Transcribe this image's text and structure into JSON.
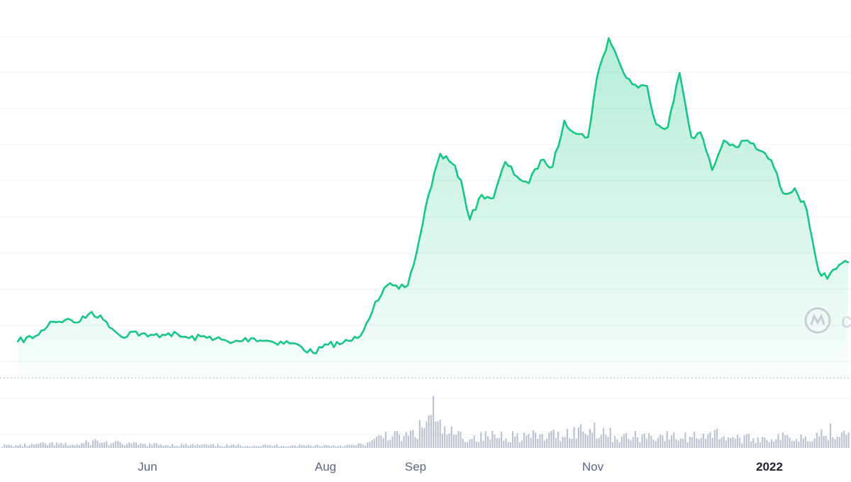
{
  "chart_data": {
    "type": "area",
    "title": "",
    "xlabel": "",
    "ylabel": "",
    "x_tick_labels": [
      {
        "label": "Jun",
        "emphasis": false
      },
      {
        "label": "Aug",
        "emphasis": false
      },
      {
        "label": "Sep",
        "emphasis": false
      },
      {
        "label": "Nov",
        "emphasis": false
      },
      {
        "label": "2022",
        "emphasis": true
      }
    ],
    "price_series": {
      "name": "",
      "color": "#16c784",
      "fill_top_color": "#16c784",
      "note_units": "relative price index (axis values not printed)",
      "x": [
        "2021-04-20",
        "2021-04-27",
        "2021-05-01",
        "2021-05-06",
        "2021-05-11",
        "2021-05-15",
        "2021-05-20",
        "2021-05-25",
        "2021-05-29",
        "2021-06-03",
        "2021-06-10",
        "2021-06-17",
        "2021-06-24",
        "2021-07-01",
        "2021-07-08",
        "2021-07-15",
        "2021-07-22",
        "2021-07-29",
        "2021-08-03",
        "2021-08-08",
        "2021-08-13",
        "2021-08-16",
        "2021-08-19",
        "2021-08-23",
        "2021-08-27",
        "2021-08-30",
        "2021-09-02",
        "2021-09-06",
        "2021-09-10",
        "2021-09-14",
        "2021-09-17",
        "2021-09-20",
        "2021-09-24",
        "2021-09-28",
        "2021-10-02",
        "2021-10-06",
        "2021-10-10",
        "2021-10-14",
        "2021-10-18",
        "2021-10-22",
        "2021-10-26",
        "2021-10-30",
        "2021-11-02",
        "2021-11-06",
        "2021-11-09",
        "2021-11-12",
        "2021-11-16",
        "2021-11-19",
        "2021-11-22",
        "2021-11-26",
        "2021-11-30",
        "2021-12-04",
        "2021-12-07",
        "2021-12-11",
        "2021-12-15",
        "2021-12-19",
        "2021-12-23",
        "2021-12-27",
        "2021-12-31",
        "2022-01-04",
        "2022-01-08",
        "2022-01-12",
        "2022-01-16",
        "2022-01-19",
        "2022-01-22",
        "2022-01-26"
      ],
      "values": [
        0.4,
        0.6,
        1.0,
        1.05,
        1.0,
        1.3,
        1.0,
        0.55,
        0.7,
        0.55,
        0.65,
        0.5,
        0.55,
        0.35,
        0.5,
        0.4,
        0.35,
        0.05,
        0.3,
        0.35,
        0.5,
        0.95,
        1.6,
        2.1,
        2.0,
        2.1,
        3.1,
        4.85,
        6.1,
        5.8,
        5.3,
        4.1,
        4.85,
        4.75,
        5.85,
        5.4,
        5.2,
        5.9,
        5.7,
        7.1,
        6.7,
        6.6,
        8.4,
        9.6,
        9.0,
        8.4,
        8.1,
        8.15,
        7.0,
        6.9,
        8.55,
        6.6,
        6.75,
        5.6,
        6.5,
        6.3,
        6.5,
        6.2,
        5.9,
        4.9,
        5.05,
        4.4,
        2.55,
        2.3,
        2.6,
        2.8
      ]
    },
    "volume_series": {
      "name": "",
      "color": "#a6b0c3",
      "note_units": "relative volume",
      "x": [
        "2021-04-20",
        "2021-05-01",
        "2021-05-10",
        "2021-05-16",
        "2021-05-20",
        "2021-06-01",
        "2021-06-15",
        "2021-07-01",
        "2021-07-15",
        "2021-08-01",
        "2021-08-12",
        "2021-08-18",
        "2021-08-22",
        "2021-08-28",
        "2021-09-02",
        "2021-09-06",
        "2021-09-07",
        "2021-09-08",
        "2021-09-12",
        "2021-09-20",
        "2021-10-01",
        "2021-10-15",
        "2021-10-25",
        "2021-11-01",
        "2021-11-09",
        "2021-11-20",
        "2021-12-01",
        "2021-12-10",
        "2021-12-20",
        "2022-01-01",
        "2022-01-10",
        "2022-01-18",
        "2022-01-22"
      ],
      "values": [
        0.05,
        0.08,
        0.06,
        0.14,
        0.1,
        0.07,
        0.06,
        0.05,
        0.05,
        0.05,
        0.05,
        0.12,
        0.28,
        0.2,
        0.32,
        0.55,
        1.0,
        0.45,
        0.3,
        0.2,
        0.25,
        0.22,
        0.32,
        0.4,
        0.2,
        0.25,
        0.2,
        0.3,
        0.18,
        0.2,
        0.22,
        0.3,
        0.35
      ]
    },
    "x_range": [
      "2021-04-14",
      "2022-01-27"
    ],
    "price_range": [
      -0.1,
      9.9
    ],
    "grid": true,
    "watermark": "c"
  }
}
